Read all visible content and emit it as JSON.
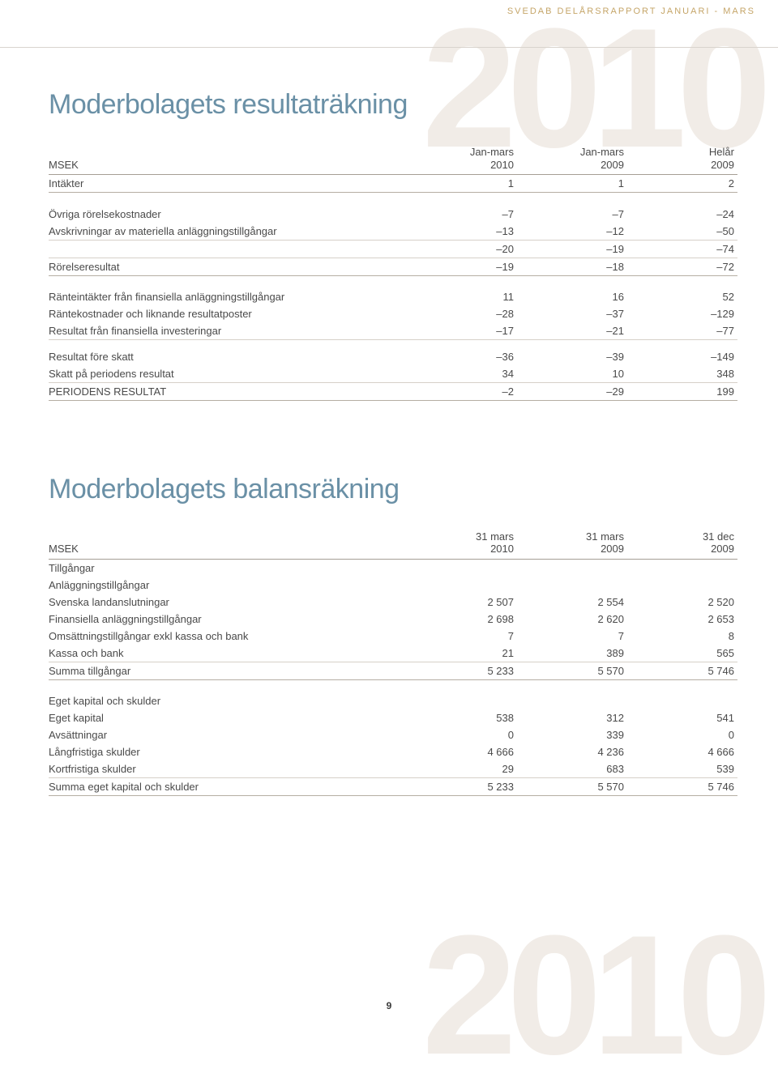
{
  "colors": {
    "heading": "#6a90a6",
    "body_text": "#4a4a4a",
    "watermark": "#f1ece7",
    "header_gold": "#c5a568",
    "rule_light": "#d6d0c8",
    "rule_med": "#b5aea3",
    "rule_dark": "#a59e94",
    "background": "#ffffff"
  },
  "typography": {
    "heading_fontsize_pt": 26,
    "body_fontsize_pt": 10,
    "header_line_fontsize_pt": 8,
    "watermark_fontsize_pt": 160
  },
  "header_text": "SVEDAB DELÅRSRAPPORT JANUARI - MARS",
  "watermark_year": "2010",
  "page_number": "9",
  "section1": {
    "title": "Moderbolagets resultaträkning",
    "col_label": "MSEK",
    "col1a": "Jan-mars",
    "col1b": "2010",
    "col2a": "Jan-mars",
    "col2b": "2009",
    "col3a": "Helår",
    "col3b": "2009",
    "rows": [
      {
        "l": "Intäkter",
        "v": [
          "1",
          "1",
          "2"
        ],
        "rule": "med"
      },
      {
        "spacer": true
      },
      {
        "l": "Övriga rörelsekostnader",
        "v": [
          "–7",
          "–7",
          "–24"
        ]
      },
      {
        "l": "Avskrivningar av materiella anläggningstillgångar",
        "v": [
          "–13",
          "–12",
          "–50"
        ],
        "rule": "light"
      },
      {
        "l": "",
        "v": [
          "–20",
          "–19",
          "–74"
        ],
        "rule": "light"
      },
      {
        "l": "Rörelseresultat",
        "v": [
          "–19",
          "–18",
          "–72"
        ],
        "rule": "med"
      },
      {
        "spacer": true
      },
      {
        "l": "Ränteintäkter från finansiella anläggningstillgångar",
        "v": [
          "11",
          "16",
          "52"
        ]
      },
      {
        "l": "Räntekostnader och liknande resultatposter",
        "v": [
          "–28",
          "–37",
          "–129"
        ]
      },
      {
        "l": "Resultat från finansiella investeringar",
        "v": [
          "–17",
          "–21",
          "–77"
        ],
        "rule": "light"
      },
      {
        "spacer_sm": true
      },
      {
        "l": "Resultat före skatt",
        "v": [
          "–36",
          "–39",
          "–149"
        ]
      },
      {
        "l": "Skatt på periodens resultat",
        "v": [
          "34",
          "10",
          "348"
        ],
        "rule": "light"
      },
      {
        "l": "PERIODENS RESULTAT",
        "v": [
          "–2",
          "–29",
          "199"
        ],
        "rule": "med"
      }
    ]
  },
  "section2": {
    "title": "Moderbolagets balansräkning",
    "col_label": "MSEK",
    "col1a": "31 mars",
    "col1b": "2010",
    "col2a": "31 mars",
    "col2b": "2009",
    "col3a": "31 dec",
    "col3b": "2009",
    "rows": [
      {
        "l": "Tillgångar",
        "sub": true
      },
      {
        "l": "Anläggningstillgångar",
        "sub": true
      },
      {
        "l": "Svenska landanslutningar",
        "v": [
          "2 507",
          "2 554",
          "2 520"
        ]
      },
      {
        "l": "Finansiella anläggningstillgångar",
        "v": [
          "2 698",
          "2 620",
          "2 653"
        ]
      },
      {
        "l": "Omsättningstillgångar exkl kassa och bank",
        "v": [
          "7",
          "7",
          "8"
        ]
      },
      {
        "l": "Kassa och bank",
        "v": [
          "21",
          "389",
          "565"
        ],
        "rule": "light"
      },
      {
        "l": "Summa tillgångar",
        "v": [
          "5 233",
          "5 570",
          "5 746"
        ],
        "rule": "med"
      },
      {
        "spacer": true
      },
      {
        "l": "Eget kapital och skulder",
        "sub": true
      },
      {
        "l": "Eget kapital",
        "v": [
          "538",
          "312",
          "541"
        ]
      },
      {
        "l": "Avsättningar",
        "v": [
          "0",
          "339",
          "0"
        ]
      },
      {
        "l": "Långfristiga skulder",
        "v": [
          "4 666",
          "4 236",
          "4 666"
        ]
      },
      {
        "l": "Kortfristiga skulder",
        "v": [
          "29",
          "683",
          "539"
        ],
        "rule": "light"
      },
      {
        "l": "Summa eget kapital och skulder",
        "v": [
          "5 233",
          "5 570",
          "5 746"
        ],
        "rule": "med"
      }
    ]
  }
}
